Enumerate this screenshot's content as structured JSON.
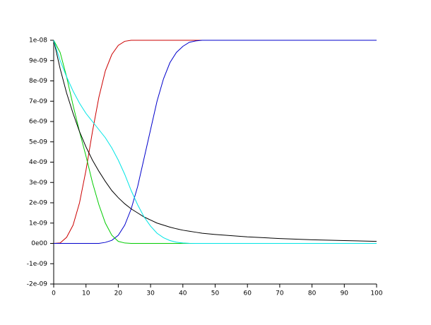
{
  "chart_data": {
    "type": "line",
    "x": [
      0,
      2,
      4,
      6,
      8,
      10,
      12,
      14,
      16,
      18,
      20,
      22,
      24,
      26,
      28,
      30,
      32,
      34,
      36,
      38,
      40,
      42,
      44,
      46,
      48,
      50,
      60,
      70,
      80,
      90,
      100
    ],
    "series": [
      {
        "color": "#cc0000",
        "values": [
          0,
          2e-11,
          3e-10,
          9e-10,
          2e-09,
          3.6e-09,
          5.5e-09,
          7.2e-09,
          8.5e-09,
          9.3e-09,
          9.75e-09,
          9.95e-09,
          1e-08,
          1e-08,
          1e-08,
          1e-08,
          1e-08,
          1e-08,
          1e-08,
          1e-08,
          1e-08,
          1e-08,
          1e-08,
          1e-08,
          1e-08,
          1e-08,
          1e-08,
          1e-08,
          1e-08,
          1e-08,
          1e-08
        ]
      },
      {
        "color": "#0000cc",
        "values": [
          0,
          0,
          0,
          0,
          0,
          0,
          0,
          0,
          5e-11,
          1.5e-10,
          4e-10,
          9e-10,
          1.7e-09,
          2.8e-09,
          4.2e-09,
          5.6e-09,
          7e-09,
          8.1e-09,
          8.9e-09,
          9.4e-09,
          9.7e-09,
          9.9e-09,
          9.97e-09,
          1e-08,
          1e-08,
          1e-08,
          1e-08,
          1e-08,
          1e-08,
          1e-08,
          1e-08
        ]
      },
      {
        "color": "#00cc00",
        "values": [
          1e-08,
          9.4e-09,
          8.2e-09,
          6.8e-09,
          5.5e-09,
          4.3e-09,
          3e-09,
          1.9e-09,
          1e-09,
          4e-10,
          1e-10,
          2e-11,
          0,
          0,
          0,
          0,
          0,
          0,
          0,
          0,
          0,
          0,
          0,
          0,
          0,
          0,
          0,
          0,
          0,
          0,
          0
        ]
      },
      {
        "color": "#000000",
        "values": [
          1e-08,
          8.6e-09,
          7.4e-09,
          6.4e-09,
          5.5e-09,
          4.75e-09,
          4.1e-09,
          3.55e-09,
          3.05e-09,
          2.6e-09,
          2.25e-09,
          1.95e-09,
          1.7e-09,
          1.5e-09,
          1.3e-09,
          1.15e-09,
          1e-09,
          9e-10,
          8e-10,
          7.2e-10,
          6.5e-10,
          6e-10,
          5.5e-10,
          5e-10,
          4.7e-10,
          4.4e-10,
          3.2e-10,
          2.4e-10,
          1.8e-10,
          1.4e-10,
          1e-10
        ]
      },
      {
        "color": "#00e5e5",
        "values": [
          1e-08,
          9e-09,
          8.2e-09,
          7.5e-09,
          6.9e-09,
          6.4e-09,
          6e-09,
          5.6e-09,
          5.2e-09,
          4.7e-09,
          4.1e-09,
          3.4e-09,
          2.6e-09,
          1.9e-09,
          1.3e-09,
          8.5e-10,
          5e-10,
          2.8e-10,
          1.4e-10,
          6e-11,
          2e-11,
          5e-12,
          0,
          0,
          0,
          0,
          0,
          0,
          0,
          0,
          0
        ]
      }
    ],
    "xlim": [
      0,
      100
    ],
    "xticks": [
      0,
      10,
      20,
      30,
      40,
      50,
      60,
      70,
      80,
      90,
      100
    ],
    "ylim": [
      -2e-09,
      1e-08
    ],
    "yticks": [
      {
        "value": -2e-09,
        "label": "-2e-09"
      },
      {
        "value": -1e-09,
        "label": "-1e-09"
      },
      {
        "value": 0,
        "label": "0e00"
      },
      {
        "value": 1e-09,
        "label": "1e-09"
      },
      {
        "value": 2e-09,
        "label": "2e-09"
      },
      {
        "value": 3e-09,
        "label": "3e-09"
      },
      {
        "value": 4e-09,
        "label": "4e-09"
      },
      {
        "value": 5e-09,
        "label": "5e-09"
      },
      {
        "value": 6e-09,
        "label": "6e-09"
      },
      {
        "value": 7e-09,
        "label": "7e-09"
      },
      {
        "value": 8e-09,
        "label": "8e-09"
      },
      {
        "value": 9e-09,
        "label": "9e-09"
      },
      {
        "value": 1e-08,
        "label": "1e-08"
      }
    ],
    "grid": false
  }
}
